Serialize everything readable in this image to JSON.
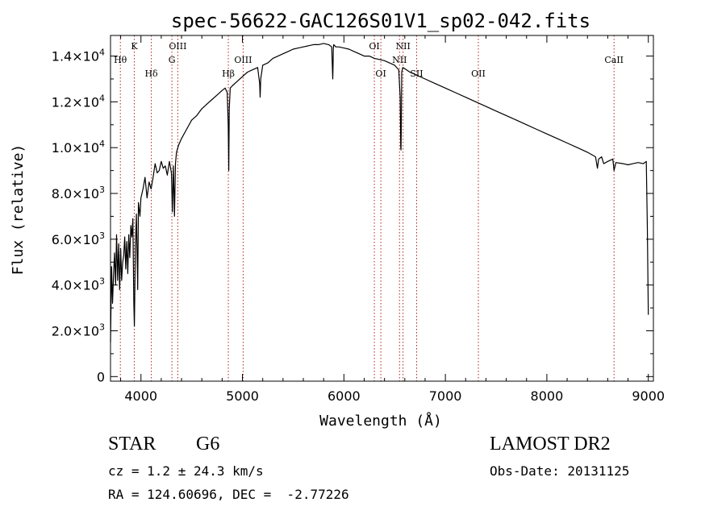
{
  "chart_data": {
    "type": "line",
    "title": "spec-56622-GAC126S01V1_sp02-042.fits",
    "xlabel": "Wavelength (Å)",
    "ylabel": "Flux (relative)",
    "xlim": [
      3700,
      9050
    ],
    "ylim": [
      -200,
      14900
    ],
    "x_ticks": [
      {
        "v": 4000,
        "label": "4000"
      },
      {
        "v": 5000,
        "label": "5000"
      },
      {
        "v": 6000,
        "label": "6000"
      },
      {
        "v": 7000,
        "label": "7000"
      },
      {
        "v": 8000,
        "label": "8000"
      },
      {
        "v": 9000,
        "label": "9000"
      }
    ],
    "y_ticks": [
      {
        "v": 0,
        "mant": "0",
        "exp": ""
      },
      {
        "v": 2000,
        "mant": "2.0×10",
        "exp": "3"
      },
      {
        "v": 4000,
        "mant": "4.0×10",
        "exp": "3"
      },
      {
        "v": 6000,
        "mant": "6.0×10",
        "exp": "3"
      },
      {
        "v": 8000,
        "mant": "8.0×10",
        "exp": "3"
      },
      {
        "v": 10000,
        "mant": "1.0×10",
        "exp": "4"
      },
      {
        "v": 12000,
        "mant": "1.2×10",
        "exp": "4"
      },
      {
        "v": 14000,
        "mant": "1.4×10",
        "exp": "4"
      }
    ],
    "grid": false,
    "series": [
      {
        "color": "#000000",
        "x": [
          3700,
          3710,
          3720,
          3730,
          3740,
          3750,
          3760,
          3770,
          3780,
          3790,
          3800,
          3810,
          3820,
          3830,
          3840,
          3850,
          3860,
          3870,
          3880,
          3890,
          3900,
          3910,
          3920,
          3930,
          3935,
          3945,
          3955,
          3968,
          3975,
          3990,
          4000,
          4020,
          4040,
          4060,
          4080,
          4100,
          4120,
          4140,
          4160,
          4180,
          4200,
          4220,
          4240,
          4260,
          4280,
          4300,
          4310,
          4320,
          4330,
          4340,
          4350,
          4370,
          4400,
          4450,
          4500,
          4550,
          4600,
          4650,
          4700,
          4750,
          4800,
          4830,
          4850,
          4860,
          4865,
          4870,
          4880,
          4900,
          4950,
          5000,
          5050,
          5100,
          5150,
          5170,
          5175,
          5180,
          5200,
          5250,
          5300,
          5350,
          5400,
          5450,
          5500,
          5550,
          5600,
          5650,
          5700,
          5750,
          5800,
          5850,
          5880,
          5890,
          5893,
          5896,
          5900,
          5920,
          5950,
          6000,
          6050,
          6100,
          6150,
          6200,
          6250,
          6300,
          6350,
          6400,
          6450,
          6500,
          6540,
          6555,
          6560,
          6563,
          6566,
          6570,
          6580,
          6600,
          6650,
          6700,
          6800,
          6900,
          7000,
          7100,
          7200,
          7300,
          7400,
          7500,
          7600,
          7700,
          7800,
          7900,
          8000,
          8100,
          8200,
          8300,
          8400,
          8480,
          8498,
          8510,
          8540,
          8560,
          8600,
          8650,
          8662,
          8680,
          8750,
          8800,
          8850,
          8900,
          8950,
          8980,
          8990,
          9000
        ],
        "y": [
          1500,
          4800,
          3200,
          4500,
          5400,
          4000,
          6200,
          4200,
          5800,
          3800,
          5600,
          4200,
          5000,
          5300,
          6100,
          4700,
          5900,
          4500,
          6200,
          5200,
          6600,
          6100,
          6900,
          3200,
          2200,
          5600,
          7100,
          3800,
          7600,
          7000,
          7800,
          8200,
          8700,
          7800,
          8500,
          8200,
          8700,
          9300,
          8900,
          9000,
          9400,
          9100,
          9200,
          8800,
          9400,
          8900,
          7200,
          9200,
          7000,
          9300,
          9800,
          10100,
          10400,
          10800,
          11200,
          11400,
          11700,
          11900,
          12100,
          12300,
          12500,
          12600,
          12400,
          11000,
          9000,
          11700,
          12600,
          12700,
          12900,
          13100,
          13300,
          13400,
          13500,
          12800,
          12200,
          13000,
          13600,
          13700,
          13900,
          14000,
          14100,
          14200,
          14300,
          14350,
          14400,
          14450,
          14500,
          14500,
          14550,
          14500,
          14400,
          13000,
          13600,
          14300,
          14500,
          14400,
          14400,
          14350,
          14300,
          14200,
          14100,
          14000,
          14000,
          13900,
          13850,
          13800,
          13700,
          13600,
          13400,
          12200,
          10000,
          9900,
          11000,
          13300,
          13500,
          13450,
          13300,
          13200,
          13000,
          12800,
          12600,
          12400,
          12200,
          12000,
          11800,
          11600,
          11400,
          11200,
          11000,
          10800,
          10600,
          10400,
          10200,
          10000,
          9800,
          9600,
          9100,
          9500,
          9600,
          9300,
          9400,
          9500,
          9000,
          9350,
          9300,
          9250,
          9300,
          9350,
          9300,
          9400,
          6500,
          2700
        ]
      }
    ],
    "lines": [
      {
        "x": 3797,
        "label": "Hθ",
        "row": 2
      },
      {
        "x": 3934,
        "label": "K",
        "row": 1
      },
      {
        "x": 4102,
        "label": "Hδ",
        "row": 3
      },
      {
        "x": 4305,
        "label": "G",
        "row": 2
      },
      {
        "x": 4363,
        "label": "OIII",
        "row": 1
      },
      {
        "x": 4861,
        "label": "Hβ",
        "row": 3
      },
      {
        "x": 5007,
        "label": "OIII",
        "row": 2
      },
      {
        "x": 6300,
        "label": "OI",
        "row": 1
      },
      {
        "x": 6364,
        "label": "OI",
        "row": 3
      },
      {
        "x": 6548,
        "label": "NII",
        "row": 2
      },
      {
        "x": 6583,
        "label": "NII",
        "row": 1
      },
      {
        "x": 6717,
        "label": "SII",
        "row": 3
      },
      {
        "x": 7325,
        "label": "OII",
        "row": 3
      },
      {
        "x": 8662,
        "label": "CaII",
        "row": 2
      }
    ]
  },
  "info": {
    "object_type": "STAR",
    "subclass": "G6",
    "survey": "LAMOST DR2",
    "cz": "cz = 1.2 ± 24.3 km/s",
    "obs_date": "Obs-Date: 20131125",
    "radec": "RA = 124.60696, DEC =  -2.77226"
  }
}
